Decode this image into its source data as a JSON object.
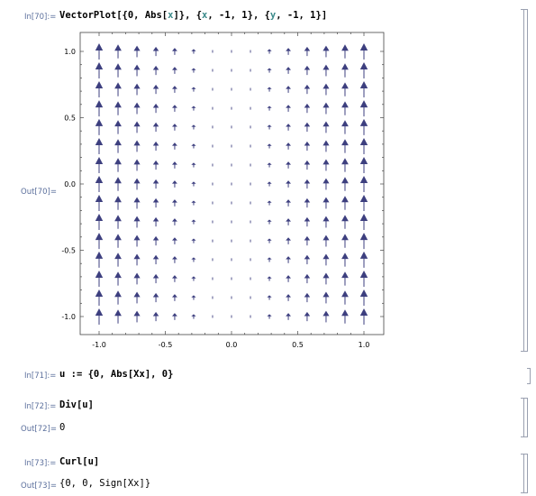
{
  "cells": [
    {
      "in_label": "In[70]:=",
      "input_parts": [
        {
          "text": "VectorPlot[{0, Abs[",
          "var": false
        },
        {
          "text": "x",
          "var": true
        },
        {
          "text": "]}, {",
          "var": false
        },
        {
          "text": "x",
          "var": true
        },
        {
          "text": ", -1, 1}, {",
          "var": false
        },
        {
          "text": "y",
          "var": true
        },
        {
          "text": ", -1, 1}]",
          "var": false
        }
      ],
      "out_label": "Out[70]="
    },
    {
      "in_label": "In[71]:=",
      "input": "u := {0, Abs[Xx], 0}"
    },
    {
      "in_label": "In[72]:=",
      "input": "Div[u]",
      "out_label": "Out[72]=",
      "output": "0"
    },
    {
      "in_label": "In[73]:=",
      "input": "Curl[u]",
      "out_label": "Out[73]=",
      "output": "{0, 0, Sign[Xx]}"
    }
  ],
  "chart_data": {
    "type": "vector_field",
    "field": "{0, Abs[x]}",
    "xlim": [
      -1,
      1
    ],
    "ylim": [
      -1,
      1
    ],
    "x_ticks": [
      "-1.0",
      "-0.5",
      "0.0",
      "0.5",
      "1.0"
    ],
    "y_ticks": [
      "-1.0",
      "-0.5",
      "0.0",
      "0.5",
      "1.0"
    ],
    "grid_x": [
      -1.0,
      -0.857,
      -0.714,
      -0.571,
      -0.429,
      -0.286,
      -0.143,
      0.0,
      0.143,
      0.286,
      0.429,
      0.571,
      0.714,
      0.857,
      1.0
    ],
    "grid_y": [
      -1.0,
      -0.857,
      -0.714,
      -0.571,
      -0.429,
      -0.286,
      -0.143,
      0.0,
      0.143,
      0.286,
      0.429,
      0.571,
      0.714,
      0.857,
      1.0
    ],
    "arrow_color": "#3d3f7f",
    "frame": true
  }
}
